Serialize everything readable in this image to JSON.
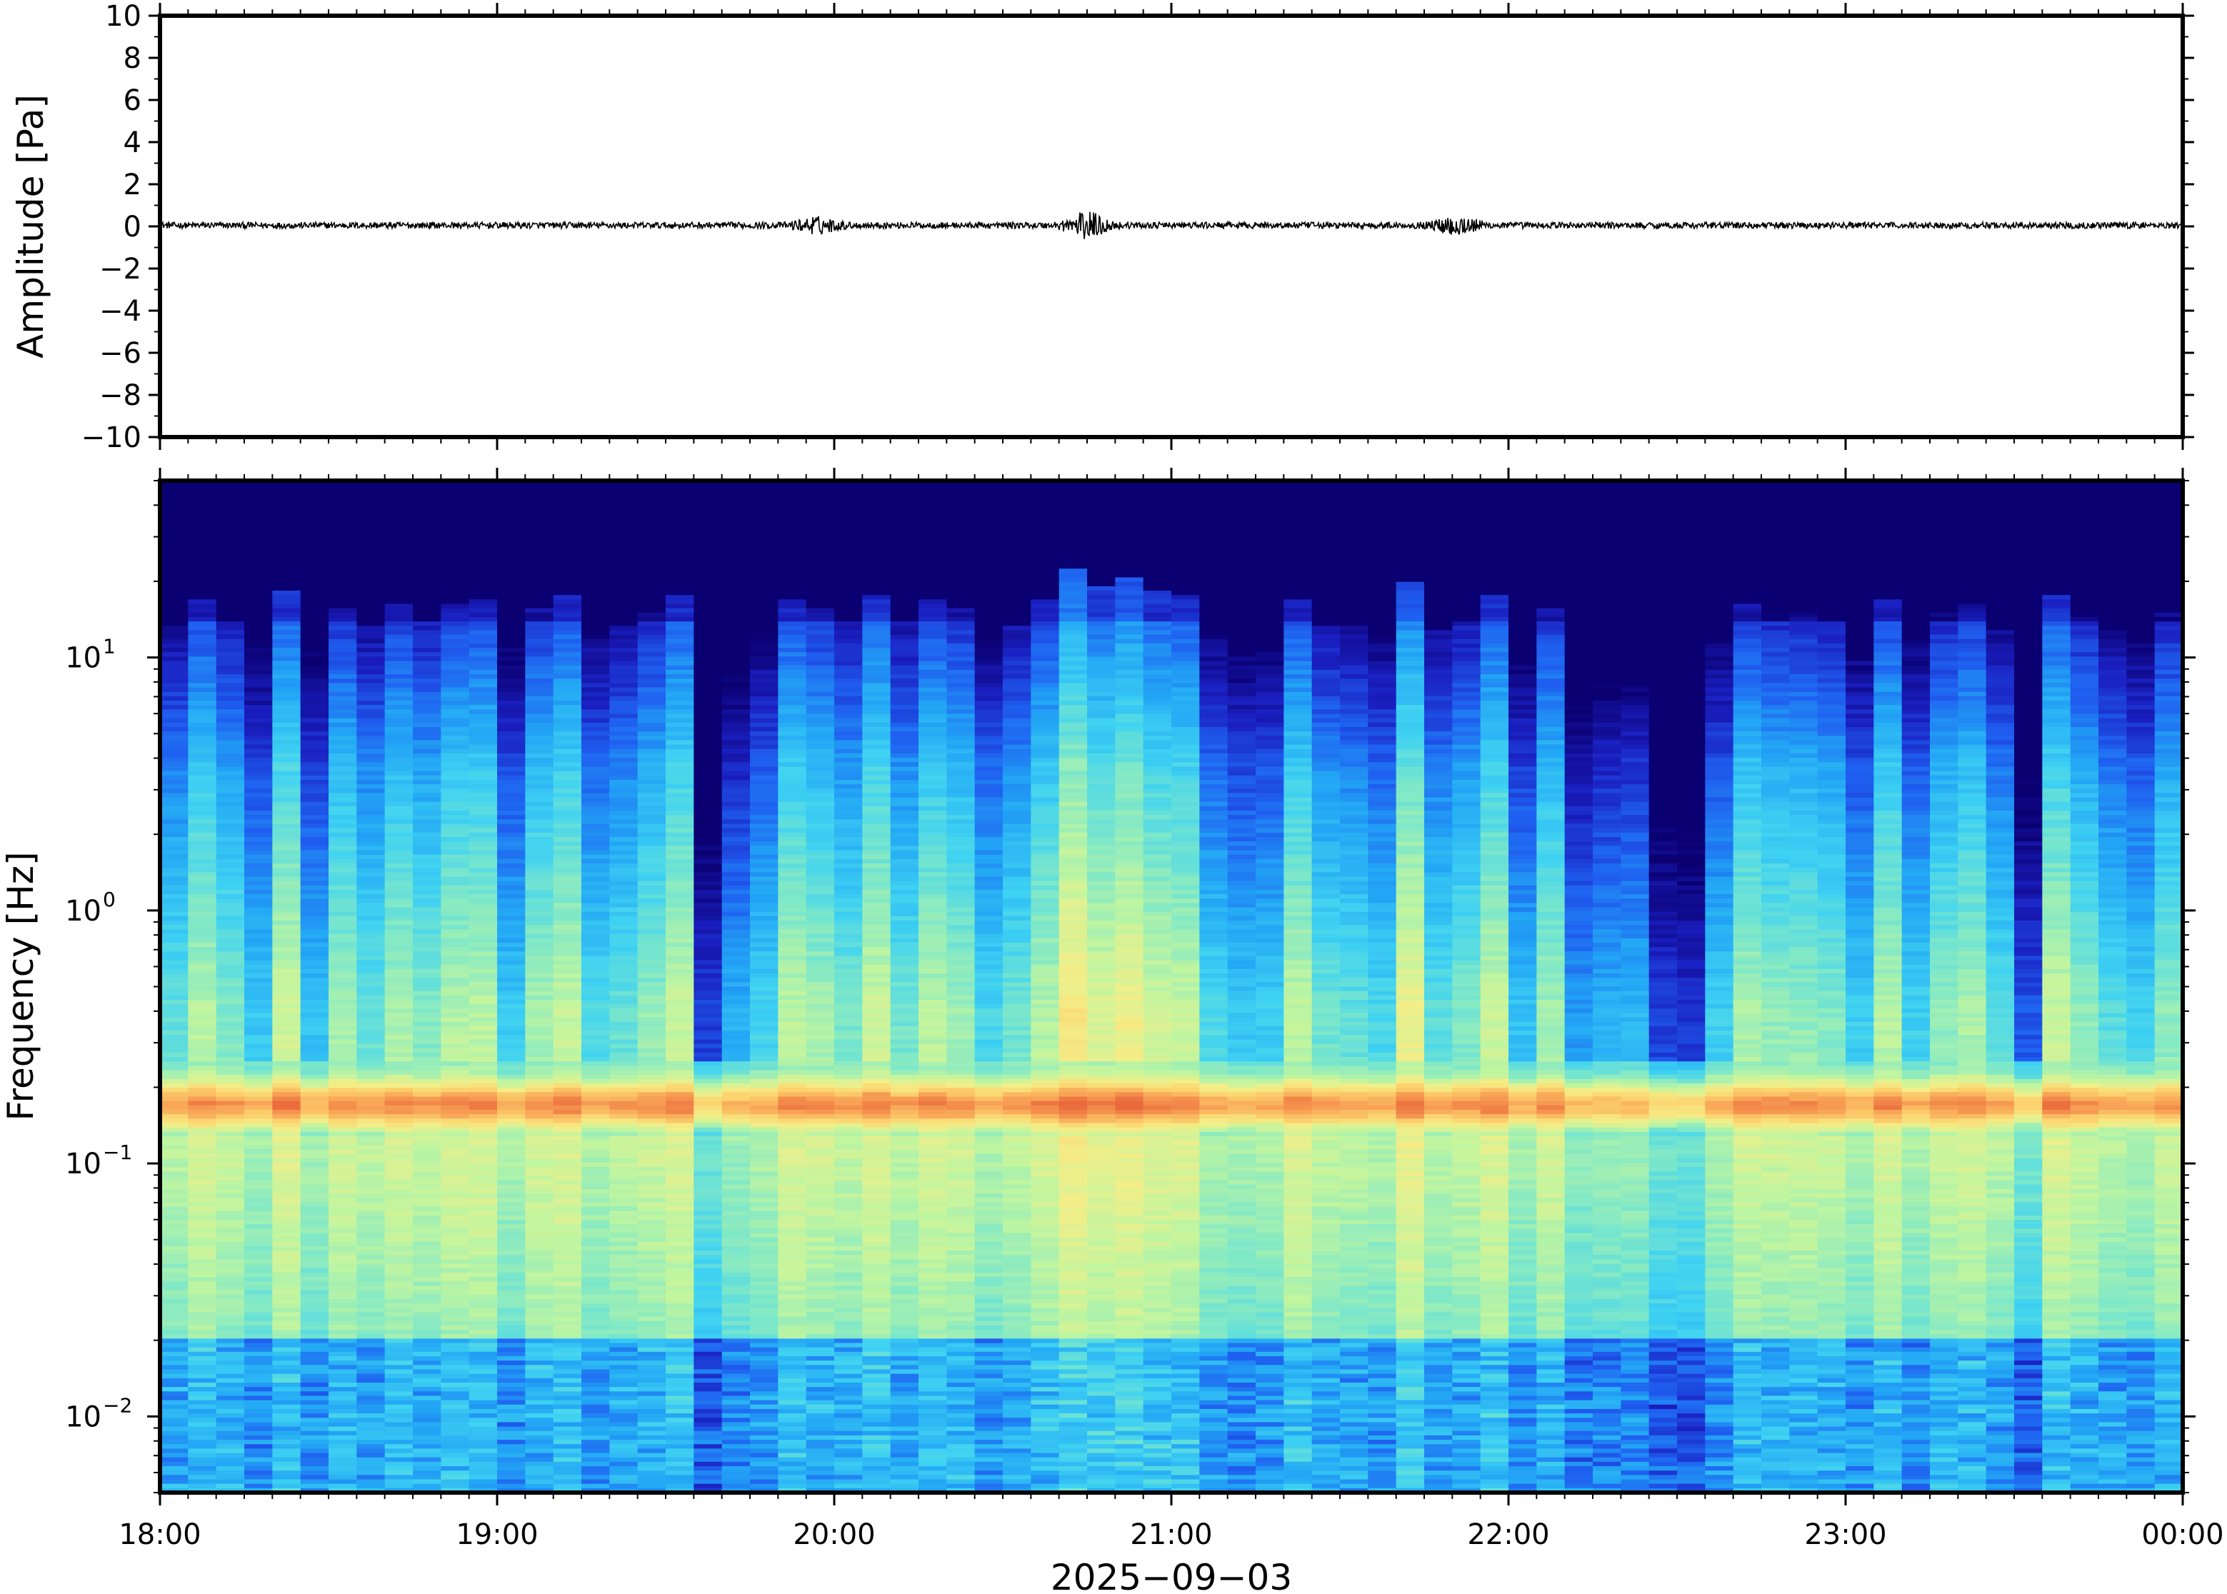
{
  "chart_data": [
    {
      "type": "line",
      "ylabel": "Amplitude [Pa]",
      "ylim": [
        -10,
        10
      ],
      "yticks": [
        "10",
        "8",
        "6",
        "4",
        "2",
        "0",
        "−2",
        "−4",
        "−6",
        "−8",
        "−10"
      ],
      "ytick_values": [
        10,
        8,
        6,
        4,
        2,
        0,
        -2,
        -4,
        -6,
        -8,
        -10
      ],
      "xlim_hours": [
        18,
        24
      ],
      "series": [
        {
          "baseline": 0.05,
          "noise_amplitude": 0.15,
          "bursts": [
            {
              "t": 20.75,
              "amp": 0.55
            },
            {
              "t": 21.85,
              "amp": 0.4
            },
            {
              "t": 19.95,
              "amp": 0.3
            }
          ]
        }
      ]
    },
    {
      "type": "heatmap",
      "ylabel": "Frequency [Hz]",
      "yscale": "log",
      "ylim": [
        0.005,
        50
      ],
      "yticks": [
        {
          "base": "10",
          "exp": "1",
          "value": 10
        },
        {
          "base": "10",
          "exp": "0",
          "value": 1
        },
        {
          "base": "10",
          "exp": "−1",
          "value": 0.1
        },
        {
          "base": "10",
          "exp": "−2",
          "value": 0.01
        }
      ],
      "colormap": [
        "#0b0072",
        "#1a1fc0",
        "#1f5ff0",
        "#22a6f5",
        "#3fd2f2",
        "#7fe8c8",
        "#c0f5a0",
        "#f3ee88",
        "#fcd26e",
        "#f8a255",
        "#ea6a3c"
      ],
      "dominant_band_hz": 0.17,
      "time_columns": 72
    }
  ],
  "x_axis": {
    "ticks": [
      "18:00",
      "19:00",
      "20:00",
      "21:00",
      "22:00",
      "23:00",
      "00:00"
    ],
    "tick_hours": [
      18,
      19,
      20,
      21,
      22,
      23,
      24
    ],
    "date_label": "2025−09−03"
  }
}
